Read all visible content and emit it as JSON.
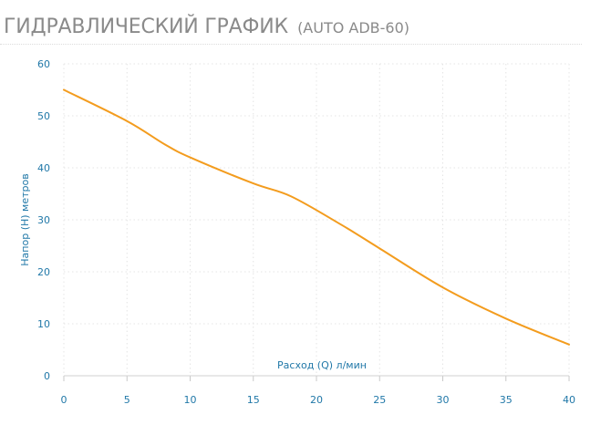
{
  "header": {
    "title": "ГИДРАВЛИЧЕСКИЙ ГРАФИК",
    "model": "(AUTO ADB-60)"
  },
  "colors": {
    "line": "#f39c1e",
    "axis_text": "#2178a8",
    "title": "#8a8a8a",
    "grid": "#e4e4e4"
  },
  "chart_data": {
    "type": "line",
    "title": "",
    "xlabel": "Расход (Q) л/мин",
    "ylabel": "Напор (H) метров",
    "xlim": [
      0,
      40
    ],
    "ylim": [
      0,
      60
    ],
    "x_ticks": [
      0,
      5,
      10,
      15,
      20,
      25,
      30,
      35,
      40
    ],
    "y_ticks": [
      0,
      10,
      20,
      30,
      40,
      50,
      60
    ],
    "grid": true,
    "series": [
      {
        "x": [
          0,
          5,
          8,
          10,
          15,
          18,
          22,
          25,
          30,
          35,
          40
        ],
        "y": [
          55,
          49,
          44.5,
          42,
          37,
          34.5,
          29,
          24.5,
          17,
          11,
          6
        ]
      }
    ]
  }
}
